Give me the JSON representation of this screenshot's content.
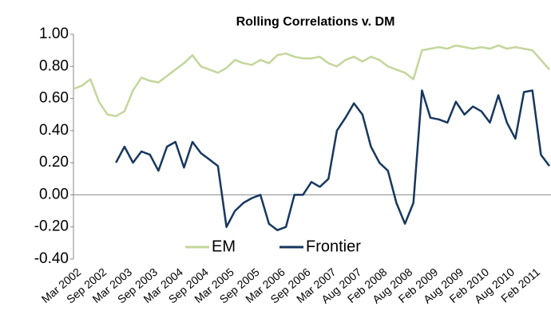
{
  "chart_data": {
    "type": "line",
    "title": "Rolling Correlations v. DM",
    "categories": [
      "Mar 2002",
      null,
      null,
      "Sep 2002",
      null,
      null,
      "Mar 2003",
      null,
      null,
      "Sep 2003",
      null,
      null,
      "Mar 2004",
      null,
      null,
      "Sep 2004",
      null,
      null,
      "Mar 2005",
      null,
      null,
      "Sep 2005",
      null,
      null,
      "Mar 2006",
      null,
      null,
      "Sep 2006",
      null,
      null,
      "Mar 2007",
      null,
      null,
      "Aug 2007",
      null,
      null,
      "Feb 2008",
      null,
      null,
      "Aug 2008",
      null,
      null,
      "Feb 2009",
      null,
      null,
      "Aug 2009",
      null,
      null,
      "Feb 2010",
      null,
      null,
      "Aug 2010",
      null,
      null,
      "Feb 2011",
      null,
      null
    ],
    "series": [
      {
        "name": "EM",
        "color": "#c3d69b",
        "values": [
          0.66,
          0.68,
          0.72,
          0.58,
          0.5,
          0.49,
          0.52,
          0.65,
          0.73,
          0.71,
          0.7,
          0.74,
          0.78,
          0.82,
          0.87,
          0.8,
          0.78,
          0.76,
          0.79,
          0.84,
          0.82,
          0.81,
          0.84,
          0.82,
          0.87,
          0.88,
          0.86,
          0.85,
          0.85,
          0.86,
          0.82,
          0.8,
          0.84,
          0.86,
          0.83,
          0.86,
          0.84,
          0.8,
          0.78,
          0.76,
          0.72,
          0.9,
          0.91,
          0.92,
          0.91,
          0.93,
          0.92,
          0.91,
          0.92,
          0.91,
          0.93,
          0.91,
          0.92,
          0.91,
          0.9,
          0.84,
          0.78
        ]
      },
      {
        "name": "Frontier",
        "color": "#17375e",
        "values": [
          null,
          null,
          null,
          null,
          null,
          0.2,
          0.3,
          0.2,
          0.27,
          0.25,
          0.15,
          0.3,
          0.33,
          0.17,
          0.33,
          0.26,
          0.22,
          0.18,
          -0.2,
          -0.1,
          -0.05,
          -0.02,
          0.0,
          -0.18,
          -0.22,
          -0.2,
          0.0,
          0.0,
          0.08,
          0.05,
          0.1,
          0.4,
          0.48,
          0.57,
          0.5,
          0.3,
          0.2,
          0.15,
          -0.05,
          -0.18,
          -0.05,
          0.65,
          0.48,
          0.47,
          0.45,
          0.58,
          0.5,
          0.55,
          0.52,
          0.45,
          0.62,
          0.45,
          0.35,
          0.64,
          0.65,
          0.25,
          0.18
        ]
      }
    ],
    "ylim": [
      -0.4,
      1.0
    ],
    "yticks": [
      {
        "value": -0.4,
        "label": "-0.40"
      },
      {
        "value": -0.2,
        "label": "-0.20"
      },
      {
        "value": 0,
        "label": "0.00"
      },
      {
        "value": 0.2,
        "label": "0.20"
      },
      {
        "value": 0.4,
        "label": "0.40"
      },
      {
        "value": 0.6,
        "label": "0.60"
      },
      {
        "value": 0.8,
        "label": "0.80"
      },
      {
        "value": 1.0,
        "label": "1.00"
      }
    ],
    "grid": false,
    "legend": "lower left"
  }
}
